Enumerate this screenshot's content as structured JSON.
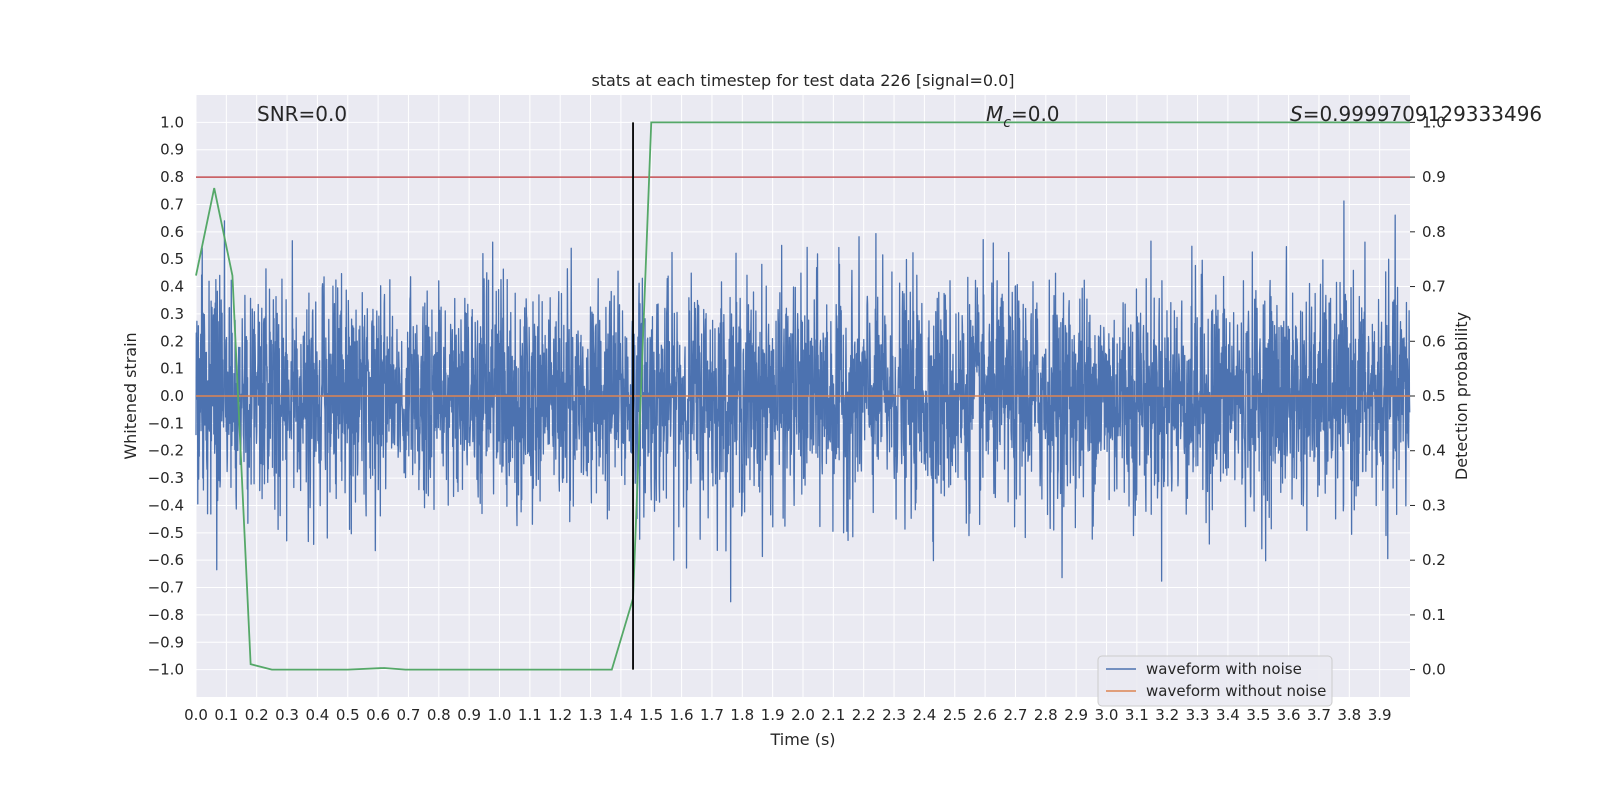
{
  "chart_data": {
    "type": "line",
    "title": "stats at each timestep for test data 226 [signal=0.0]",
    "xlabel": "Time (s)",
    "ylabel": "Whitened strain",
    "y2label": "Detection probability",
    "xlim": [
      0.0,
      4.0
    ],
    "ylim": [
      -1.1,
      1.1
    ],
    "y2lim": [
      -0.05,
      1.05
    ],
    "x_ticks": [
      "0.0",
      "0.1",
      "0.2",
      "0.3",
      "0.4",
      "0.5",
      "0.6",
      "0.7",
      "0.8",
      "0.9",
      "1.0",
      "1.1",
      "1.2",
      "1.3",
      "1.4",
      "1.5",
      "1.6",
      "1.7",
      "1.8",
      "1.9",
      "2.0",
      "2.1",
      "2.2",
      "2.3",
      "2.4",
      "2.5",
      "2.6",
      "2.7",
      "2.8",
      "2.9",
      "3.0",
      "3.1",
      "3.2",
      "3.3",
      "3.4",
      "3.5",
      "3.6",
      "3.7",
      "3.8",
      "3.9"
    ],
    "y_ticks": [
      "1.0",
      "0.9",
      "0.8",
      "0.7",
      "0.6",
      "0.5",
      "0.4",
      "0.3",
      "0.2",
      "0.1",
      "0.0",
      "−0.1",
      "−0.2",
      "−0.3",
      "−0.4",
      "−0.5",
      "−0.6",
      "−0.7",
      "−0.8",
      "−0.9",
      "−1.0"
    ],
    "y2_ticks": [
      "1.0",
      "0.9",
      "0.8",
      "0.7",
      "0.6",
      "0.5",
      "0.4",
      "0.3",
      "0.2",
      "0.1",
      "0.0"
    ],
    "annotations": {
      "snr": "SNR=0.0",
      "mc_symbol": "M",
      "mc_sub": "c",
      "mc_value": "=0.0",
      "s_symbol": "S",
      "s_value": "=0.9999709129333496"
    },
    "grid": true,
    "legend_position": "lower-right",
    "series": [
      {
        "name": "waveform with noise",
        "color": "#4c72b0",
        "style": "dense noise, approx. range -1.0 to 1.0"
      },
      {
        "name": "waveform without noise",
        "color": "#dd8452",
        "x": [
          0.0,
          4.0
        ],
        "y": [
          0.0,
          0.0
        ]
      },
      {
        "color": "#55a868",
        "axis": "y2",
        "x": [
          0.0,
          0.06,
          0.12,
          0.18,
          0.25,
          0.5,
          0.62,
          0.69,
          1.0,
          1.37,
          1.44,
          1.5,
          4.0
        ],
        "y": [
          0.72,
          0.88,
          0.72,
          0.01,
          0.0,
          0.0,
          0.003,
          0.0,
          0.0,
          0.0,
          0.13,
          1.0,
          1.0
        ]
      },
      {
        "color": "#c44e52",
        "axis": "y2",
        "x": [
          0.0,
          4.0
        ],
        "y": [
          0.9,
          0.9
        ]
      },
      {
        "color": "#000000",
        "x": [
          1.44,
          1.44
        ],
        "y": [
          -1.0,
          1.0
        ]
      }
    ],
    "colors": {
      "axes_bg": "#eaeaf2",
      "grid": "#ffffff"
    }
  }
}
